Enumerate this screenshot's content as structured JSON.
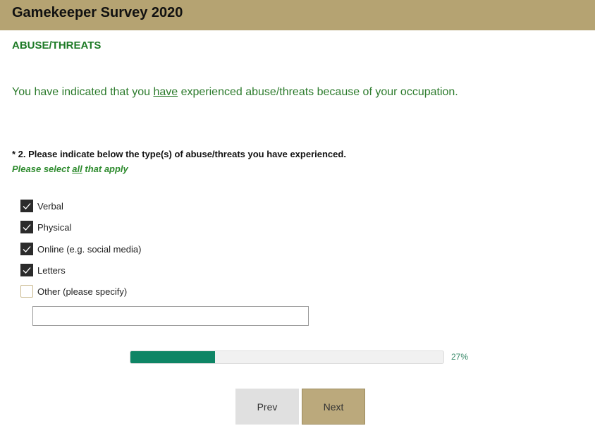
{
  "header": {
    "title": "Gamekeeper Survey 2020"
  },
  "section": {
    "title": "ABUSE/THREATS"
  },
  "intro": {
    "before": "You have indicated that you ",
    "emphasis": "have",
    "after": " experienced abuse/threats because of your occupation."
  },
  "question": {
    "text": "* 2. Please indicate below the type(s) of abuse/threats you have experienced.",
    "hint_before": "Please select ",
    "hint_emphasis": "all",
    "hint_after": " that apply"
  },
  "options": [
    {
      "label": "Verbal",
      "checked": true
    },
    {
      "label": "Physical",
      "checked": true
    },
    {
      "label": "Online (e.g. social media)",
      "checked": true
    },
    {
      "label": "Letters",
      "checked": true
    },
    {
      "label": "Other (please specify)",
      "checked": false
    }
  ],
  "other_input": {
    "value": ""
  },
  "progress": {
    "percent": 27,
    "label": "27%",
    "color": "#0e8565"
  },
  "buttons": {
    "prev": "Prev",
    "next": "Next"
  }
}
